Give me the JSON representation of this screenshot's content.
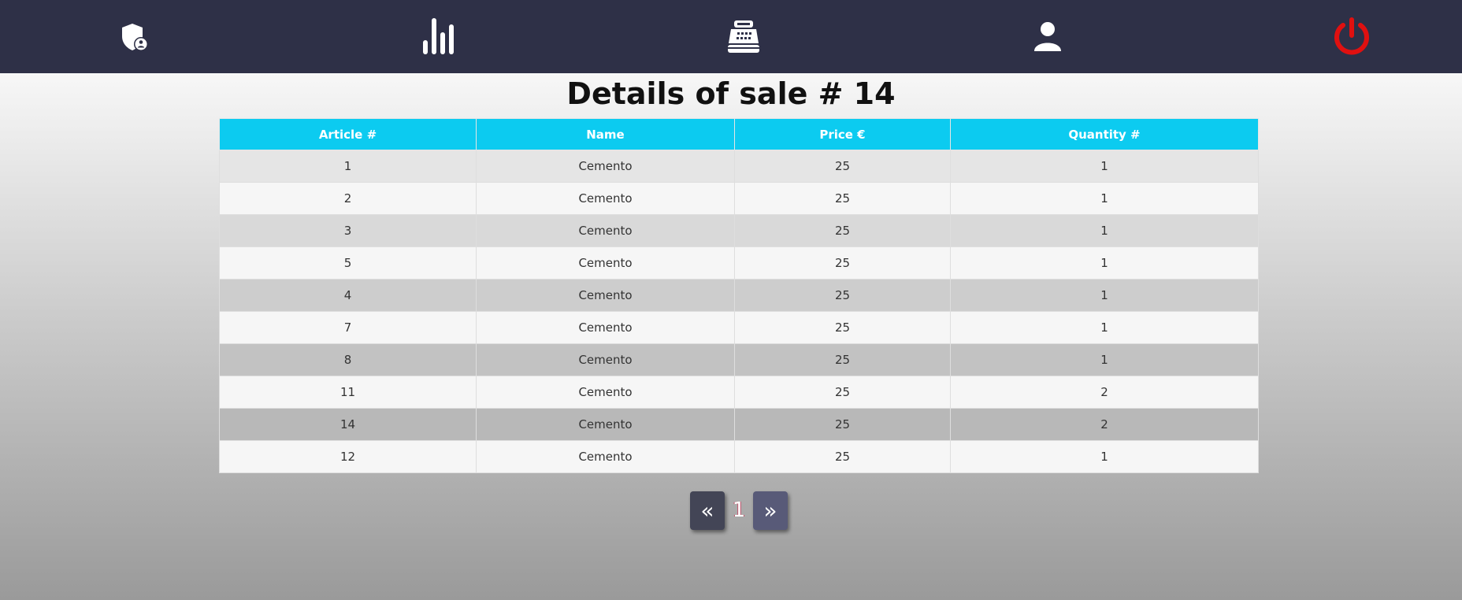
{
  "nav": {
    "background": "#2e3047",
    "items": [
      {
        "icon": "shield-user-icon"
      },
      {
        "icon": "bar-chart-icon"
      },
      {
        "icon": "cash-register-icon"
      },
      {
        "icon": "user-icon"
      },
      {
        "icon": "power-icon",
        "color": "#e01010"
      }
    ]
  },
  "page": {
    "title": "Details of sale # 14"
  },
  "table": {
    "header_color": "#0ccbf0",
    "headers": [
      "Article #",
      "Name",
      "Price €",
      "Quantity #"
    ],
    "rows": [
      [
        "1",
        "Cemento",
        "25",
        "1"
      ],
      [
        "2",
        "Cemento",
        "25",
        "1"
      ],
      [
        "3",
        "Cemento",
        "25",
        "1"
      ],
      [
        "5",
        "Cemento",
        "25",
        "1"
      ],
      [
        "4",
        "Cemento",
        "25",
        "1"
      ],
      [
        "7",
        "Cemento",
        "25",
        "1"
      ],
      [
        "8",
        "Cemento",
        "25",
        "1"
      ],
      [
        "11",
        "Cemento",
        "25",
        "2"
      ],
      [
        "14",
        "Cemento",
        "25",
        "2"
      ],
      [
        "12",
        "Cemento",
        "25",
        "1"
      ]
    ],
    "row_colors": [
      "#e5e5e5",
      "#f6f6f6",
      "#d9d9d9",
      "#f6f6f6",
      "#cdcdcd",
      "#f6f6f6",
      "#c2c2c2",
      "#f6f6f6",
      "#b8b8b8",
      "#f6f6f6"
    ]
  },
  "pagination": {
    "prev_label": "«",
    "current_page": "1",
    "next_label": "»"
  }
}
